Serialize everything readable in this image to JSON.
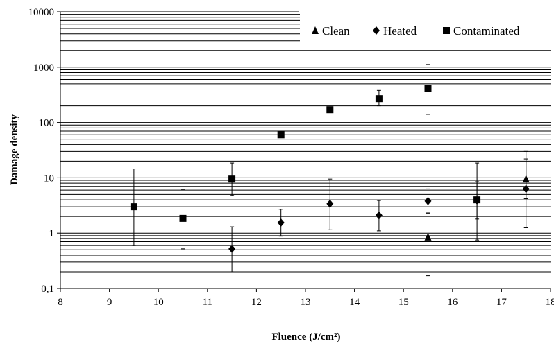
{
  "chart_data": {
    "type": "scatter",
    "title": "",
    "xlabel": "Fluence (J/cm²)",
    "ylabel": "Damage density",
    "xlim": [
      8,
      18
    ],
    "ylim": [
      0.1,
      10000
    ],
    "yscale": "log",
    "grid": "horizontal gridlines at every 1-2-3...9 x 10^n",
    "legend_position": "top-right",
    "x_ticks": [
      "8",
      "9",
      "10",
      "11",
      "12",
      "13",
      "14",
      "15",
      "16",
      "17",
      "18"
    ],
    "y_ticks": [
      "0,1",
      "1",
      "10",
      "100",
      "1000",
      "10000"
    ],
    "series": [
      {
        "name": "Clean",
        "marker": "triangle",
        "points": [
          {
            "x": 15.5,
            "y": 0.85,
            "low": 0.17,
            "high": 2.3
          },
          {
            "x": 17.5,
            "y": 9.5,
            "low": 4.2,
            "high": 22
          }
        ]
      },
      {
        "name": "Heated",
        "marker": "diamond",
        "points": [
          {
            "x": 11.5,
            "y": 0.52,
            "low": 0.2,
            "high": 1.3
          },
          {
            "x": 12.5,
            "y": 1.55,
            "low": 0.88,
            "high": 2.7
          },
          {
            "x": 13.5,
            "y": 3.4,
            "low": 1.15,
            "high": 9.5
          },
          {
            "x": 14.5,
            "y": 2.1,
            "low": 1.1,
            "high": 3.9
          },
          {
            "x": 15.5,
            "y": 3.8,
            "low": 2.4,
            "high": 6.3
          },
          {
            "x": 16.5,
            "y": 3.9,
            "low": 0.75,
            "high": 8.5
          },
          {
            "x": 17.5,
            "y": 6.3,
            "low": 1.25,
            "high": 30
          }
        ]
      },
      {
        "name": "Contaminated",
        "marker": "square",
        "points": [
          {
            "x": 9.5,
            "y": 3.0,
            "low": 0.6,
            "high": 14.5
          },
          {
            "x": 10.5,
            "y": 1.85,
            "low": 0.52,
            "high": 6.2
          },
          {
            "x": 11.5,
            "y": 9.5,
            "low": 4.8,
            "high": 18.5
          },
          {
            "x": 12.5,
            "y": 60,
            "low": 55,
            "high": 66
          },
          {
            "x": 13.5,
            "y": 170,
            "low": 165,
            "high": 178
          },
          {
            "x": 14.5,
            "y": 270,
            "low": 200,
            "high": 380
          },
          {
            "x": 15.5,
            "y": 410,
            "low": 140,
            "high": 1120
          },
          {
            "x": 16.5,
            "y": 4.0,
            "low": 1.8,
            "high": 18.5
          }
        ]
      }
    ]
  }
}
